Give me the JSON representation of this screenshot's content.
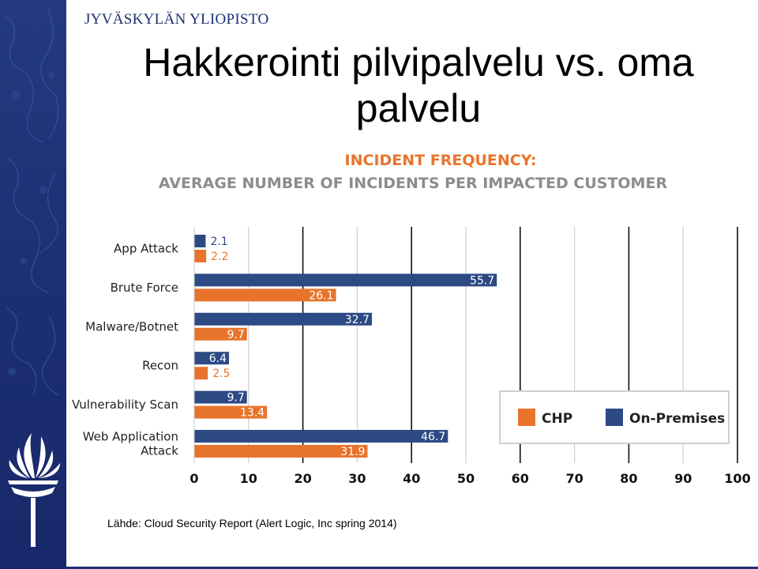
{
  "header": {
    "university": "JYVÄSKYLÄN YLIOPISTO"
  },
  "slide": {
    "title": "Hakkerointi pilvipalvelu vs. oma palvelu",
    "source": "Lähde: Cloud Security Report (Alert Logic, Inc spring 2014)"
  },
  "colors": {
    "chp": "#e8742c",
    "on_premises": "#2e4a85",
    "sidebar": "#1c2f73",
    "grid": "#d6d6d6"
  },
  "chart_data": {
    "type": "bar",
    "orientation": "horizontal",
    "title": "INCIDENT FREQUENCY:",
    "subtitle": "AVERAGE NUMBER OF INCIDENTS PER IMPACTED CUSTOMER",
    "xlabel": "",
    "ylabel": "",
    "categories": [
      "App Attack",
      "Brute Force",
      "Malware/Botnet",
      "Recon",
      "Vulnerability Scan",
      "Web Application Attack"
    ],
    "category_lines": [
      [
        "App Attack"
      ],
      [
        "Brute Force"
      ],
      [
        "Malware/Botnet"
      ],
      [
        "Recon"
      ],
      [
        "Vulnerability Scan"
      ],
      [
        "Web Application",
        "Attack"
      ]
    ],
    "series": [
      {
        "name": "On-Premises",
        "color": "#2e4a85",
        "values": [
          2.1,
          55.7,
          32.7,
          6.4,
          9.7,
          46.7
        ]
      },
      {
        "name": "CHP",
        "color": "#e8742c",
        "values": [
          2.2,
          26.1,
          9.7,
          2.5,
          13.4,
          31.9
        ]
      }
    ],
    "legend": [
      {
        "name": "CHP",
        "color": "#e8742c"
      },
      {
        "name": "On-Premises",
        "color": "#2e4a85"
      }
    ],
    "legend_position": "right",
    "xlim": [
      0,
      100
    ],
    "xticks": [
      "0",
      "10",
      "20",
      "30",
      "40",
      "50",
      "60",
      "70",
      "80",
      "90",
      "100"
    ],
    "grid": true
  }
}
